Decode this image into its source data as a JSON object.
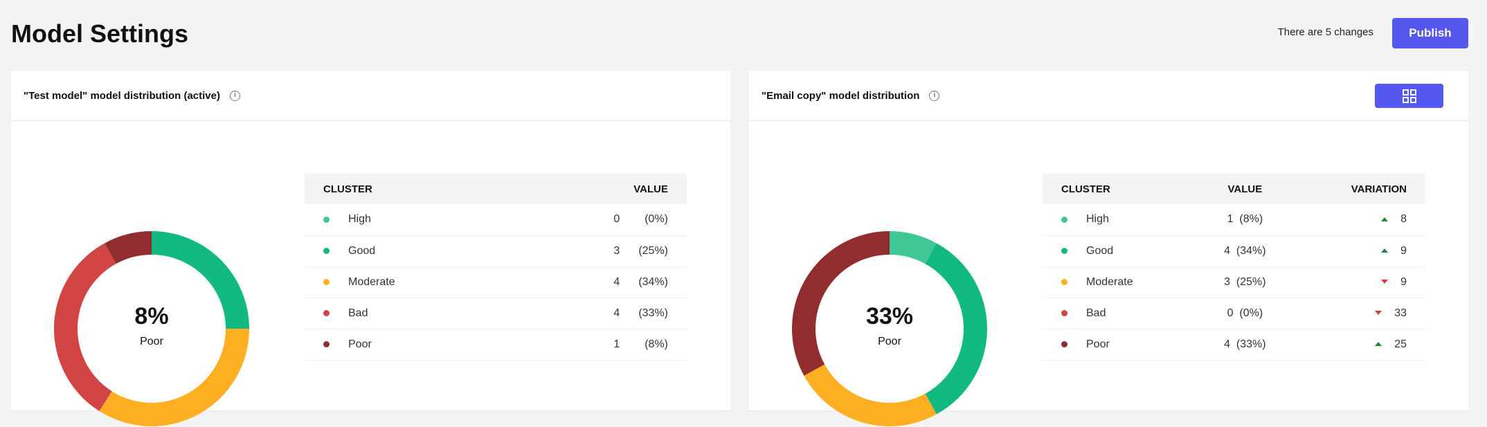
{
  "header": {
    "title": "Model Settings",
    "changes": "There are 5 changes",
    "publish": "Publish"
  },
  "colors": {
    "High": "#40c796",
    "Good": "#12b981",
    "Moderate": "#feb022",
    "Bad": "#d14545",
    "Poor": "#922d2f",
    "accent": "#5558ee"
  },
  "left": {
    "title": "\"Test model\" model distribution (active)",
    "center_pct": "8%",
    "center_label": "Poor",
    "headers": [
      "CLUSTER",
      "VALUE"
    ],
    "rows": [
      {
        "name": "High",
        "count": "0",
        "pct": "(0%)",
        "share": 0
      },
      {
        "name": "Good",
        "count": "3",
        "pct": "(25%)",
        "share": 25
      },
      {
        "name": "Moderate",
        "count": "4",
        "pct": "(34%)",
        "share": 34
      },
      {
        "name": "Bad",
        "count": "4",
        "pct": "(33%)",
        "share": 33
      },
      {
        "name": "Poor",
        "count": "1",
        "pct": "(8%)",
        "share": 8
      }
    ]
  },
  "right": {
    "title": "\"Email copy\"  model distribution",
    "center_pct": "33%",
    "center_label": "Poor",
    "headers": [
      "CLUSTER",
      "VALUE",
      "VARIATION"
    ],
    "rows": [
      {
        "name": "High",
        "count": "1",
        "pct": "(8%)",
        "share": 8,
        "dir": "up",
        "variation": "8"
      },
      {
        "name": "Good",
        "count": "4",
        "pct": "(34%)",
        "share": 34,
        "dir": "up",
        "variation": "9"
      },
      {
        "name": "Moderate",
        "count": "3",
        "pct": "(25%)",
        "share": 25,
        "dir": "down",
        "variation": "9"
      },
      {
        "name": "Bad",
        "count": "0",
        "pct": "(0%)",
        "share": 0,
        "dir": "down",
        "variation": "33"
      },
      {
        "name": "Poor",
        "count": "4",
        "pct": "(33%)",
        "share": 33,
        "dir": "up",
        "variation": "25"
      }
    ]
  }
}
